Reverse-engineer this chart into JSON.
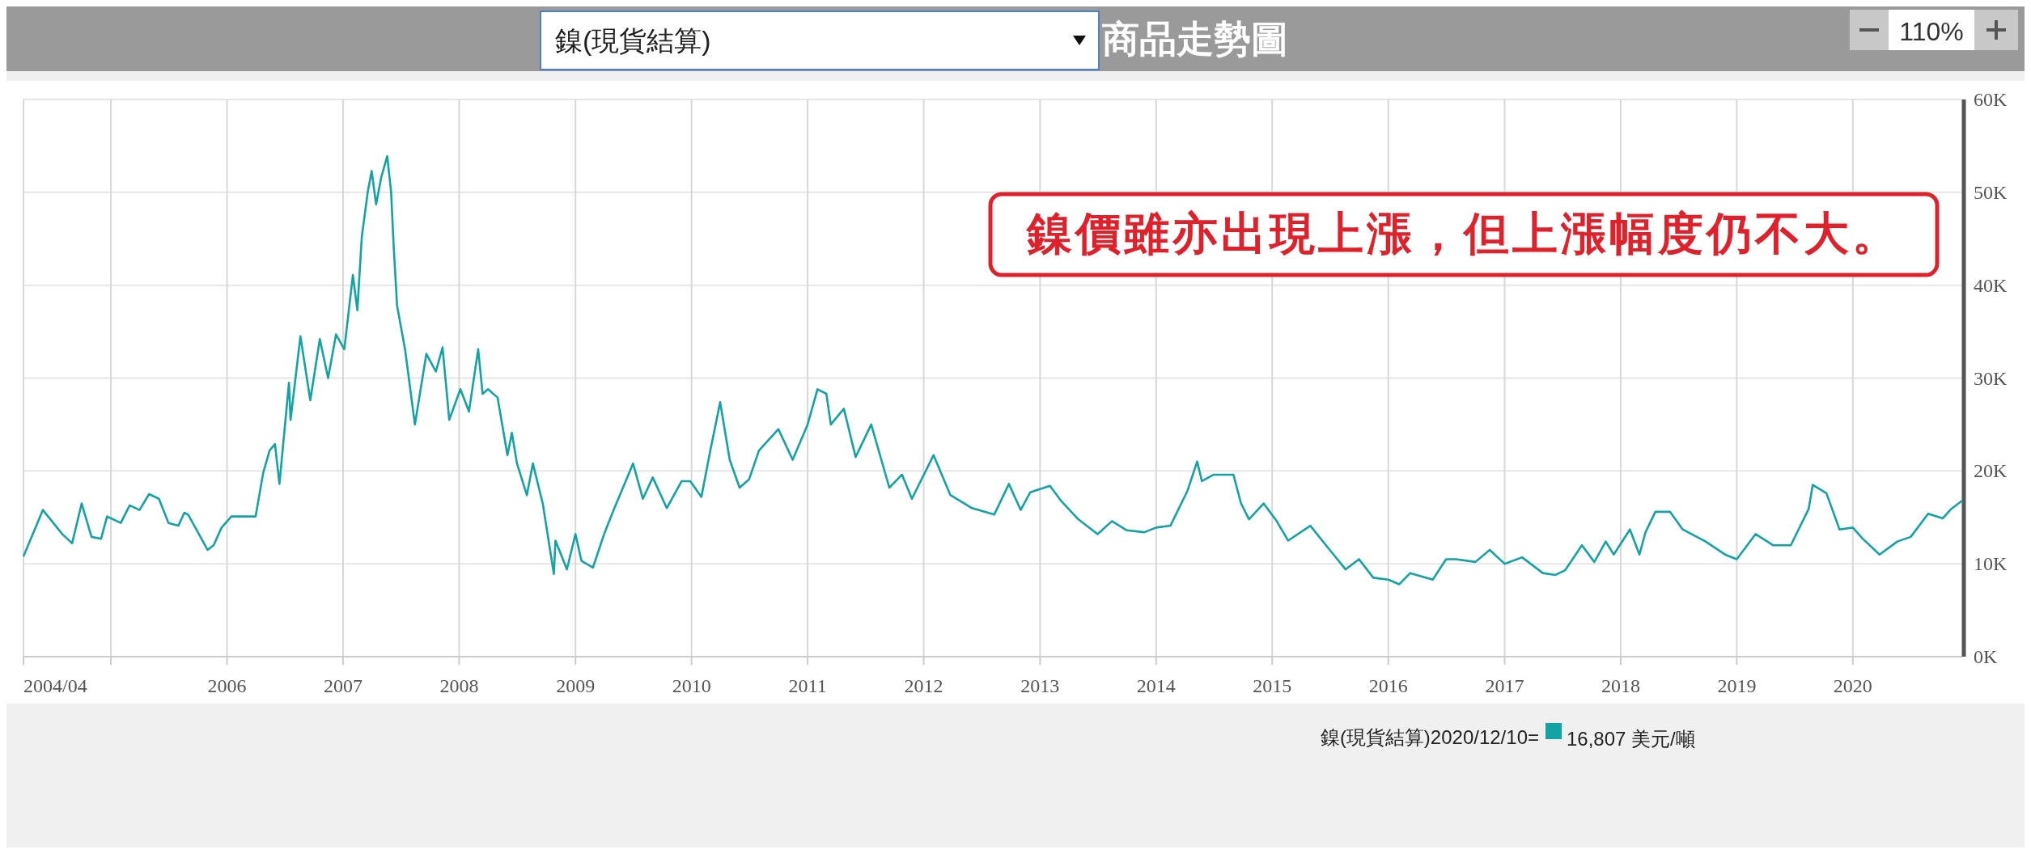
{
  "chart_data": {
    "type": "line",
    "title": "商品走勢圖",
    "legend": "bottom right",
    "grid": true,
    "marker": "none",
    "xlim": [
      "2004-04",
      "2020-12-10"
    ],
    "xticks": [
      {
        "value": "2004-04",
        "label": "2004/04"
      },
      {
        "value": "2005",
        "label": null
      },
      "2006",
      "2007",
      "2008",
      "2009",
      "2010",
      "2011",
      "2012",
      "2013",
      "2014",
      "2015",
      "2016",
      "2017",
      "2018",
      "2019",
      "2020"
    ],
    "ylim": [
      0,
      60000
    ],
    "yticks": [
      {
        "value": 0,
        "label": "0K"
      },
      {
        "value": 10000,
        "label": "10K"
      },
      {
        "value": 20000,
        "label": "20K"
      },
      {
        "value": 30000,
        "label": "30K"
      },
      {
        "value": 40000,
        "label": "40K"
      },
      {
        "value": 50000,
        "label": "50K"
      },
      {
        "value": 60000,
        "label": "60K"
      }
    ],
    "annotations": [
      "鎳價雖亦出現上漲，但上漲幅度仍不大。",
      "2020/12/10=",
      "16,807 美元/噸",
      "110%"
    ],
    "series": [
      {
        "name": "鎳(現貨結算)",
        "color": "#13a3a5",
        "x": [
          "2004-04",
          "2004-05-20",
          "2004-06",
          "2004-08",
          "2004-09",
          "2004-10",
          "2004-11",
          "2004-12",
          "2004-12-20",
          "2005-02",
          "2005-03",
          "2005-04",
          "2005-05",
          "2005-06",
          "2005-07",
          "2005-08",
          "2005-08-20",
          "2005-09",
          "2005-11",
          "2005-11-20",
          "2005-12-15",
          "2006-01-15",
          "2006-04",
          "2006-04-25",
          "2006-05-15",
          "2006-06",
          "2006-06-15",
          "2006-07-15",
          "2006-07-20",
          "2006-08-20",
          "2006-09-20",
          "2006-10-20",
          "2006-11-15",
          "2006-12-10",
          "2007-01-05",
          "2007-02",
          "2007-02-15",
          "2007-03",
          "2007-03-20",
          "2007-04",
          "2007-04-15",
          "2007-05",
          "2007-05-20",
          "2007-06",
          "2007-06-10",
          "2007-06-20",
          "2007-07-15",
          "2007-08-15",
          "2007-09-20",
          "2007-10-20",
          "2007-11-10",
          "2007-12",
          "2008-01-05",
          "2008-02",
          "2008-03",
          "2008-03-15",
          "2008-04",
          "2008-05",
          "2008-06",
          "2008-06-15",
          "2008-07",
          "2008-08",
          "2008-08-20",
          "2008-09-20",
          "2008-10-25",
          "2008-10-30",
          "2008-12-05",
          "2009-01",
          "2009-01-20",
          "2009-02-25",
          "2009-04",
          "2009-05",
          "2009-07",
          "2009-08",
          "2009-09",
          "2009-10-15",
          "2009-12",
          "2009-12-28",
          "2010-02",
          "2010-03",
          "2010-04",
          "2010-05",
          "2010-06",
          "2010-07",
          "2010-08",
          "2010-10",
          "2010-11-15",
          "2011-01",
          "2011-02",
          "2011-03",
          "2011-03-15",
          "2011-04-25",
          "2011-06",
          "2011-07-20",
          "2011-09-15",
          "2011-10-25",
          "2011-11-25",
          "2012-02",
          "2012-03-25",
          "2012-06",
          "2012-08-10",
          "2012-09-25",
          "2012-11",
          "2012-12",
          "2013-02",
          "2013-03-10",
          "2013-05",
          "2013-07",
          "2013-08-15",
          "2013-10",
          "2013-11-25",
          "2014-01",
          "2014-02-15",
          "2014-04-10",
          "2014-05-10",
          "2014-05-25",
          "2014-07",
          "2014-09",
          "2014-09-25",
          "2014-10-20",
          "2014-12-05",
          "2015-01-15",
          "2015-02-20",
          "2015-05",
          "2015-07",
          "2015-08-20",
          "2015-10",
          "2015-11-15",
          "2016-01",
          "2016-02-05",
          "2016-03-10",
          "2016-05-20",
          "2016-07",
          "2016-08",
          "2016-10",
          "2016-11-15",
          "2017-01",
          "2017-02-25",
          "2017-05",
          "2017-06-10",
          "2017-07-10",
          "2017-09",
          "2017-10-10",
          "2017-11-15",
          "2017-12-10",
          "2018-01-30",
          "2018-03",
          "2018-03-20",
          "2018-04-20",
          "2018-06-05",
          "2018-07-15",
          "2018-09-25",
          "2018-11-25",
          "2019-01",
          "2019-03",
          "2019-04-25",
          "2019-06-20",
          "2019-08-15",
          "2019-08-28",
          "2019-10-10",
          "2019-11-20",
          "2020-01",
          "2020-02",
          "2020-03-25",
          "2020-05-20",
          "2020-07",
          "2020-08-25",
          "2020-10-10",
          "2020-11-05",
          "2020-12-10"
        ],
        "values": [
          10800,
          14800,
          15800,
          13200,
          12200,
          16500,
          12900,
          12700,
          15100,
          14400,
          16300,
          15800,
          17500,
          17000,
          14400,
          14100,
          15500,
          15300,
          11500,
          12000,
          13900,
          15100,
          15100,
          19800,
          22200,
          22900,
          18600,
          29500,
          25500,
          34500,
          27600,
          34200,
          30000,
          34700,
          33100,
          41100,
          37300,
          45200,
          50100,
          52300,
          48700,
          51600,
          53900,
          50100,
          43700,
          37800,
          33100,
          25000,
          32600,
          30700,
          33300,
          25500,
          28800,
          26400,
          33100,
          28300,
          28800,
          27900,
          21700,
          24100,
          20800,
          17400,
          20800,
          16500,
          8900,
          12500,
          9400,
          13200,
          10300,
          9600,
          13200,
          15800,
          20800,
          17000,
          19300,
          16000,
          18900,
          18900,
          17200,
          22200,
          27400,
          21200,
          18200,
          19100,
          22200,
          24500,
          21200,
          25000,
          28800,
          28300,
          25000,
          26700,
          21500,
          25000,
          18200,
          19600,
          17000,
          21700,
          17400,
          16000,
          15300,
          18600,
          15800,
          17700,
          18400,
          16700,
          14800,
          13200,
          14600,
          13600,
          13400,
          13900,
          14100,
          17900,
          21000,
          18900,
          19600,
          19600,
          16500,
          14800,
          16500,
          14600,
          12500,
          14100,
          11500,
          9400,
          10500,
          8500,
          8300,
          7800,
          9000,
          8300,
          10500,
          10500,
          10200,
          11500,
          10000,
          10700,
          9000,
          8800,
          9300,
          12000,
          10200,
          12400,
          11000,
          13700,
          11000,
          13400,
          15600,
          15600,
          13700,
          12400,
          11000,
          10500,
          13200,
          12000,
          12000,
          15900,
          18500,
          17600,
          13700,
          13900,
          12700,
          11000,
          12400,
          12900,
          15400,
          14900,
          15900,
          16807
        ]
      }
    ]
  }
}
